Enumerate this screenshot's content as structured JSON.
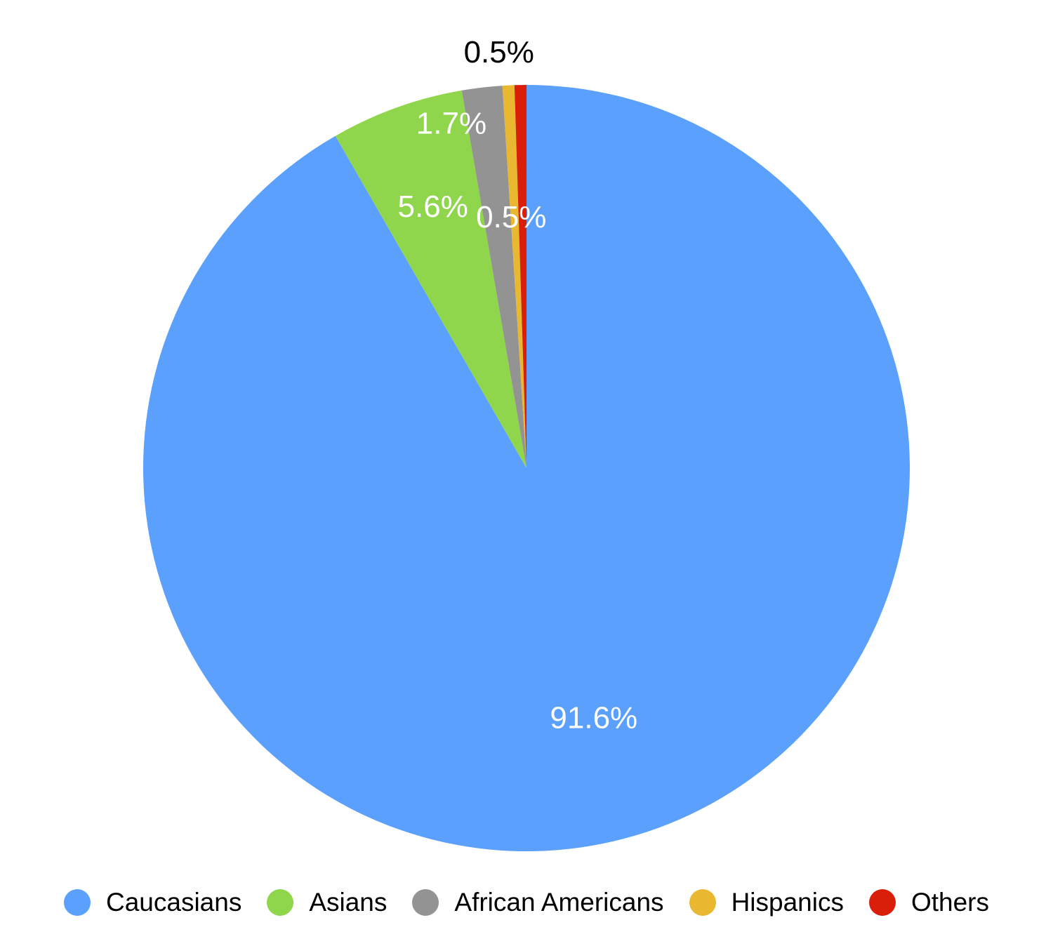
{
  "chart_data": {
    "type": "pie",
    "start": "top, clockwise",
    "slices": [
      {
        "name": "Caucasians",
        "value": 91.6,
        "label": "91.6%",
        "color": "#5ba0fc",
        "label_color": "#ffffff"
      },
      {
        "name": "Asians",
        "value": 5.6,
        "label": "5.6%",
        "color": "#8fd64c",
        "label_color": "#ffffff"
      },
      {
        "name": "African Americans",
        "value": 1.7,
        "label": "1.7%",
        "color": "#939393",
        "label_color": "#ffffff"
      },
      {
        "name": "Hispanics",
        "value": 0.5,
        "label": "0.5%",
        "color": "#e9b830",
        "label_color": "#ffffff"
      },
      {
        "name": "Others",
        "value": 0.5,
        "label": "0.5%",
        "color": "#d91e0a",
        "label_color": "#000000"
      }
    ],
    "legend_position": "bottom"
  }
}
